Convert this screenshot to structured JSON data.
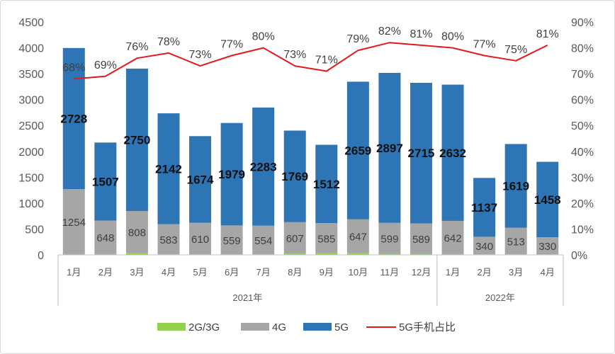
{
  "chart_data": {
    "type": "bar",
    "stacked": true,
    "categories": [
      "1月",
      "2月",
      "3月",
      "4月",
      "5月",
      "6月",
      "7月",
      "8月",
      "9月",
      "10月",
      "11月",
      "12月",
      "1月",
      "2月",
      "3月",
      "4月"
    ],
    "groups": [
      {
        "label": "2021年",
        "count": 12
      },
      {
        "label": "2022年",
        "count": 4
      }
    ],
    "series": [
      {
        "name": "2G/3G",
        "kind": "bar",
        "color": "#92d050",
        "values": [
          15,
          15,
          40,
          10,
          10,
          10,
          10,
          25,
          30,
          40,
          20,
          20,
          15,
          10,
          10,
          10
        ]
      },
      {
        "name": "4G",
        "kind": "bar",
        "color": "#a6a6a6",
        "values": [
          1254,
          648,
          808,
          583,
          610,
          559,
          554,
          607,
          585,
          647,
          599,
          589,
          642,
          340,
          513,
          330
        ],
        "labels": [
          "1254",
          "648",
          "808",
          "583",
          "610",
          "559",
          "554",
          "607",
          "585",
          "647",
          "599",
          "589",
          "642",
          "340",
          "513",
          "330"
        ]
      },
      {
        "name": "5G",
        "kind": "bar",
        "color": "#2e75b6",
        "values": [
          2728,
          1507,
          2750,
          2142,
          1674,
          1979,
          2283,
          1769,
          1512,
          2659,
          2897,
          2715,
          2632,
          1137,
          1619,
          1458
        ],
        "labels": [
          "2728",
          "1507",
          "2750",
          "2142",
          "1674",
          "1979",
          "2283",
          "1769",
          "1512",
          "2659",
          "2897",
          "2715",
          "2632",
          "1137",
          "1619",
          "1458"
        ]
      },
      {
        "name": "5G手机占比",
        "kind": "line",
        "axis": "right",
        "color": "#e31a1c",
        "values": [
          68,
          69,
          76,
          78,
          73,
          77,
          80,
          73,
          71,
          79,
          82,
          81,
          80,
          77,
          75,
          81
        ],
        "labels": [
          "68%",
          "69%",
          "76%",
          "78%",
          "73%",
          "77%",
          "80%",
          "73%",
          "71%",
          "79%",
          "82%",
          "81%",
          "80%",
          "77%",
          "75%",
          "81%"
        ]
      }
    ],
    "y_left": {
      "min": 0,
      "max": 4500,
      "step": 500,
      "ticks": [
        "0",
        "500",
        "1000",
        "1500",
        "2000",
        "2500",
        "3000",
        "3500",
        "4000",
        "4500"
      ]
    },
    "y_right": {
      "min": 0,
      "max": 90,
      "step": 10,
      "ticks": [
        "0%",
        "10%",
        "20%",
        "30%",
        "40%",
        "50%",
        "60%",
        "70%",
        "80%",
        "90%"
      ]
    },
    "grid": false,
    "legend": {
      "position": "bottom",
      "items": [
        {
          "label": "2G/3G",
          "type": "box",
          "color": "#92d050"
        },
        {
          "label": "4G",
          "type": "box",
          "color": "#a6a6a6"
        },
        {
          "label": "5G",
          "type": "box",
          "color": "#2e75b6"
        },
        {
          "label": "5G手机占比",
          "type": "line",
          "color": "#e31a1c"
        }
      ]
    }
  }
}
